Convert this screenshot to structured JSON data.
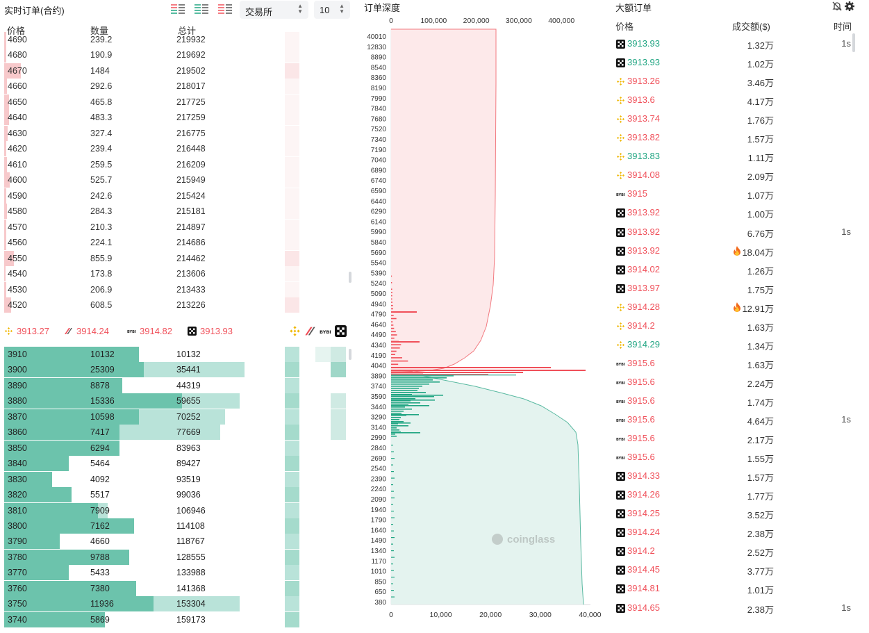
{
  "colors": {
    "ask": "#f0505a",
    "bid": "#20a582",
    "ask_bar": "#f7c9cb",
    "bid_bar": "#6cc3ac",
    "bid_bar_light": "#b9e3d9"
  },
  "orderbook": {
    "title": "实时订单(合约)",
    "exchange_select": "交易所",
    "depth_select": "10",
    "headers": {
      "price": "价格",
      "qty": "数量",
      "total": "总计"
    },
    "asks": [
      {
        "price": "4690",
        "qty": "239.2",
        "total": "219932",
        "level": 0.01
      },
      {
        "price": "4680",
        "qty": "190.9",
        "total": "219692",
        "level": 0.008
      },
      {
        "price": "4670",
        "qty": "1484",
        "total": "219502",
        "level": 0.07
      },
      {
        "price": "4660",
        "qty": "292.6",
        "total": "218017",
        "level": 0.012
      },
      {
        "price": "4650",
        "qty": "465.8",
        "total": "217725",
        "level": 0.02
      },
      {
        "price": "4640",
        "qty": "483.3",
        "total": "217259",
        "level": 0.022
      },
      {
        "price": "4630",
        "qty": "327.4",
        "total": "216775",
        "level": 0.014
      },
      {
        "price": "4620",
        "qty": "239.4",
        "total": "216448",
        "level": 0.01
      },
      {
        "price": "4610",
        "qty": "259.5",
        "total": "216209",
        "level": 0.011
      },
      {
        "price": "4600",
        "qty": "525.7",
        "total": "215949",
        "level": 0.024
      },
      {
        "price": "4590",
        "qty": "242.6",
        "total": "215424",
        "level": 0.01
      },
      {
        "price": "4580",
        "qty": "284.3",
        "total": "215181",
        "level": 0.012
      },
      {
        "price": "4570",
        "qty": "210.3",
        "total": "214897",
        "level": 0.009
      },
      {
        "price": "4560",
        "qty": "224.1",
        "total": "214686",
        "level": 0.009
      },
      {
        "price": "4550",
        "qty": "855.9",
        "total": "214462",
        "level": 0.04
      },
      {
        "price": "4540",
        "qty": "173.8",
        "total": "213606",
        "level": 0.007
      },
      {
        "price": "4530",
        "qty": "206.9",
        "total": "213433",
        "level": 0.009
      },
      {
        "price": "4520",
        "qty": "608.5",
        "total": "213226",
        "level": 0.028
      }
    ],
    "exchange_prices": [
      {
        "icon": "binance-icon",
        "price": "3913.27"
      },
      {
        "icon": "bybit-slash-icon",
        "price": "3914.24"
      },
      {
        "icon": "bybit-icon",
        "price": "3914.82"
      },
      {
        "icon": "okx-icon",
        "price": "3913.93"
      }
    ],
    "bids": [
      {
        "price": "3910",
        "qty": "10132",
        "total": "10132",
        "level": 0.56,
        "level2": 0.56
      },
      {
        "price": "3900",
        "qty": "25309",
        "total": "35441",
        "level": 0.58,
        "level2": 1.0
      },
      {
        "price": "3890",
        "qty": "8878",
        "total": "44319",
        "level": 0.49,
        "level2": 0.49
      },
      {
        "price": "3880",
        "qty": "15336",
        "total": "59655",
        "level": 0.74,
        "level2": 0.98
      },
      {
        "price": "3870",
        "qty": "10598",
        "total": "70252",
        "level": 0.56,
        "level2": 0.92
      },
      {
        "price": "3860",
        "qty": "7417",
        "total": "77669",
        "level": 0.48,
        "level2": 0.9
      },
      {
        "price": "3850",
        "qty": "6294",
        "total": "83963",
        "level": 0.48,
        "level2": 0.48
      },
      {
        "price": "3840",
        "qty": "5464",
        "total": "89427",
        "level": 0.27,
        "level2": 0.27
      },
      {
        "price": "3830",
        "qty": "4092",
        "total": "93519",
        "level": 0.2,
        "level2": 0.2
      },
      {
        "price": "3820",
        "qty": "5517",
        "total": "99036",
        "level": 0.28,
        "level2": 0.28
      },
      {
        "price": "3810",
        "qty": "7909",
        "total": "106946",
        "level": 0.39,
        "level2": 0.43
      },
      {
        "price": "3800",
        "qty": "7162",
        "total": "114108",
        "level": 0.54,
        "level2": 0.54
      },
      {
        "price": "3790",
        "qty": "4660",
        "total": "118767",
        "level": 0.23,
        "level2": 0.23
      },
      {
        "price": "3780",
        "qty": "9788",
        "total": "128555",
        "level": 0.52,
        "level2": 0.52
      },
      {
        "price": "3770",
        "qty": "5433",
        "total": "133988",
        "level": 0.27,
        "level2": 0.27
      },
      {
        "price": "3760",
        "qty": "7380",
        "total": "141368",
        "level": 0.55,
        "level2": 0.55
      },
      {
        "price": "3750",
        "qty": "11936",
        "total": "153304",
        "level": 0.62,
        "level2": 0.98
      },
      {
        "price": "3740",
        "qty": "5869",
        "total": "159173",
        "level": 0.42,
        "level2": 0.42
      }
    ]
  },
  "depth": {
    "title": "订单深度",
    "top_axis_ticks": [
      "0",
      "100,000",
      "200,000",
      "300,000",
      "400,000"
    ],
    "bottom_axis_ticks": [
      "0",
      "10,000",
      "20,000",
      "30,000",
      "40,000"
    ],
    "price_ticks": [
      "40010",
      "12830",
      "8890",
      "8540",
      "8360",
      "8190",
      "7990",
      "7840",
      "7680",
      "7520",
      "7340",
      "7190",
      "7040",
      "6890",
      "6740",
      "6590",
      "6440",
      "6290",
      "6140",
      "5990",
      "5840",
      "5690",
      "5540",
      "5390",
      "5240",
      "5090",
      "4940",
      "4790",
      "4640",
      "4490",
      "4340",
      "4190",
      "4040",
      "3890",
      "3740",
      "3590",
      "3440",
      "3290",
      "3140",
      "2990",
      "2840",
      "2690",
      "2540",
      "2390",
      "2240",
      "2090",
      "1940",
      "1790",
      "1640",
      "1490",
      "1340",
      "1170",
      "1010",
      "850",
      "650",
      "380"
    ],
    "watermark": "coinglass"
  },
  "large_orders": {
    "title": "大额订单",
    "headers": {
      "price": "价格",
      "amount": "成交额($)",
      "time": "时间"
    },
    "rows": [
      {
        "ex": "okx-icon",
        "price": "3913.93",
        "side": "bid",
        "amount": "1.32万",
        "time": "1s",
        "hot": false
      },
      {
        "ex": "okx-icon",
        "price": "3913.93",
        "side": "bid",
        "amount": "1.02万",
        "time": "",
        "hot": false
      },
      {
        "ex": "binance-icon",
        "price": "3913.26",
        "side": "ask",
        "amount": "3.46万",
        "time": "",
        "hot": false
      },
      {
        "ex": "binance-icon",
        "price": "3913.6",
        "side": "ask",
        "amount": "4.17万",
        "time": "",
        "hot": false
      },
      {
        "ex": "binance-icon",
        "price": "3913.74",
        "side": "ask",
        "amount": "1.76万",
        "time": "",
        "hot": false
      },
      {
        "ex": "binance-icon",
        "price": "3913.82",
        "side": "ask",
        "amount": "1.57万",
        "time": "",
        "hot": false
      },
      {
        "ex": "binance-icon",
        "price": "3913.83",
        "side": "bid",
        "amount": "1.11万",
        "time": "",
        "hot": false
      },
      {
        "ex": "binance-icon",
        "price": "3914.08",
        "side": "ask",
        "amount": "2.09万",
        "time": "",
        "hot": false
      },
      {
        "ex": "bybit-icon",
        "price": "3915",
        "side": "ask",
        "amount": "1.07万",
        "time": "",
        "hot": false
      },
      {
        "ex": "okx-icon",
        "price": "3913.92",
        "side": "ask",
        "amount": "1.00万",
        "time": "",
        "hot": false
      },
      {
        "ex": "okx-icon",
        "price": "3913.92",
        "side": "ask",
        "amount": "6.76万",
        "time": "1s",
        "hot": false
      },
      {
        "ex": "okx-icon",
        "price": "3913.92",
        "side": "ask",
        "amount": "18.04万",
        "time": "",
        "hot": true
      },
      {
        "ex": "okx-icon",
        "price": "3914.02",
        "side": "ask",
        "amount": "1.26万",
        "time": "",
        "hot": false
      },
      {
        "ex": "okx-icon",
        "price": "3913.97",
        "side": "ask",
        "amount": "1.75万",
        "time": "",
        "hot": false
      },
      {
        "ex": "binance-icon",
        "price": "3914.28",
        "side": "ask",
        "amount": "12.91万",
        "time": "",
        "hot": true
      },
      {
        "ex": "binance-icon",
        "price": "3914.2",
        "side": "ask",
        "amount": "1.63万",
        "time": "",
        "hot": false
      },
      {
        "ex": "binance-icon",
        "price": "3914.29",
        "side": "bid",
        "amount": "1.34万",
        "time": "",
        "hot": false
      },
      {
        "ex": "bybit-icon",
        "price": "3915.6",
        "side": "ask",
        "amount": "1.63万",
        "time": "",
        "hot": false
      },
      {
        "ex": "bybit-icon",
        "price": "3915.6",
        "side": "ask",
        "amount": "2.24万",
        "time": "",
        "hot": false
      },
      {
        "ex": "bybit-icon",
        "price": "3915.6",
        "side": "ask",
        "amount": "1.74万",
        "time": "",
        "hot": false
      },
      {
        "ex": "bybit-icon",
        "price": "3915.6",
        "side": "ask",
        "amount": "4.64万",
        "time": "1s",
        "hot": false
      },
      {
        "ex": "bybit-icon",
        "price": "3915.6",
        "side": "ask",
        "amount": "2.17万",
        "time": "",
        "hot": false
      },
      {
        "ex": "bybit-icon",
        "price": "3915.6",
        "side": "ask",
        "amount": "1.55万",
        "time": "",
        "hot": false
      },
      {
        "ex": "okx-icon",
        "price": "3914.33",
        "side": "ask",
        "amount": "1.57万",
        "time": "",
        "hot": false
      },
      {
        "ex": "okx-icon",
        "price": "3914.26",
        "side": "ask",
        "amount": "1.77万",
        "time": "",
        "hot": false
      },
      {
        "ex": "okx-icon",
        "price": "3914.25",
        "side": "ask",
        "amount": "3.52万",
        "time": "",
        "hot": false
      },
      {
        "ex": "okx-icon",
        "price": "3914.24",
        "side": "ask",
        "amount": "2.38万",
        "time": "",
        "hot": false
      },
      {
        "ex": "okx-icon",
        "price": "3914.2",
        "side": "ask",
        "amount": "2.52万",
        "time": "",
        "hot": false
      },
      {
        "ex": "okx-icon",
        "price": "3914.45",
        "side": "ask",
        "amount": "3.77万",
        "time": "",
        "hot": false
      },
      {
        "ex": "okx-icon",
        "price": "3914.81",
        "side": "ask",
        "amount": "1.01万",
        "time": "",
        "hot": false
      },
      {
        "ex": "okx-icon",
        "price": "3914.65",
        "side": "ask",
        "amount": "2.38万",
        "time": "1s",
        "hot": false
      }
    ]
  }
}
